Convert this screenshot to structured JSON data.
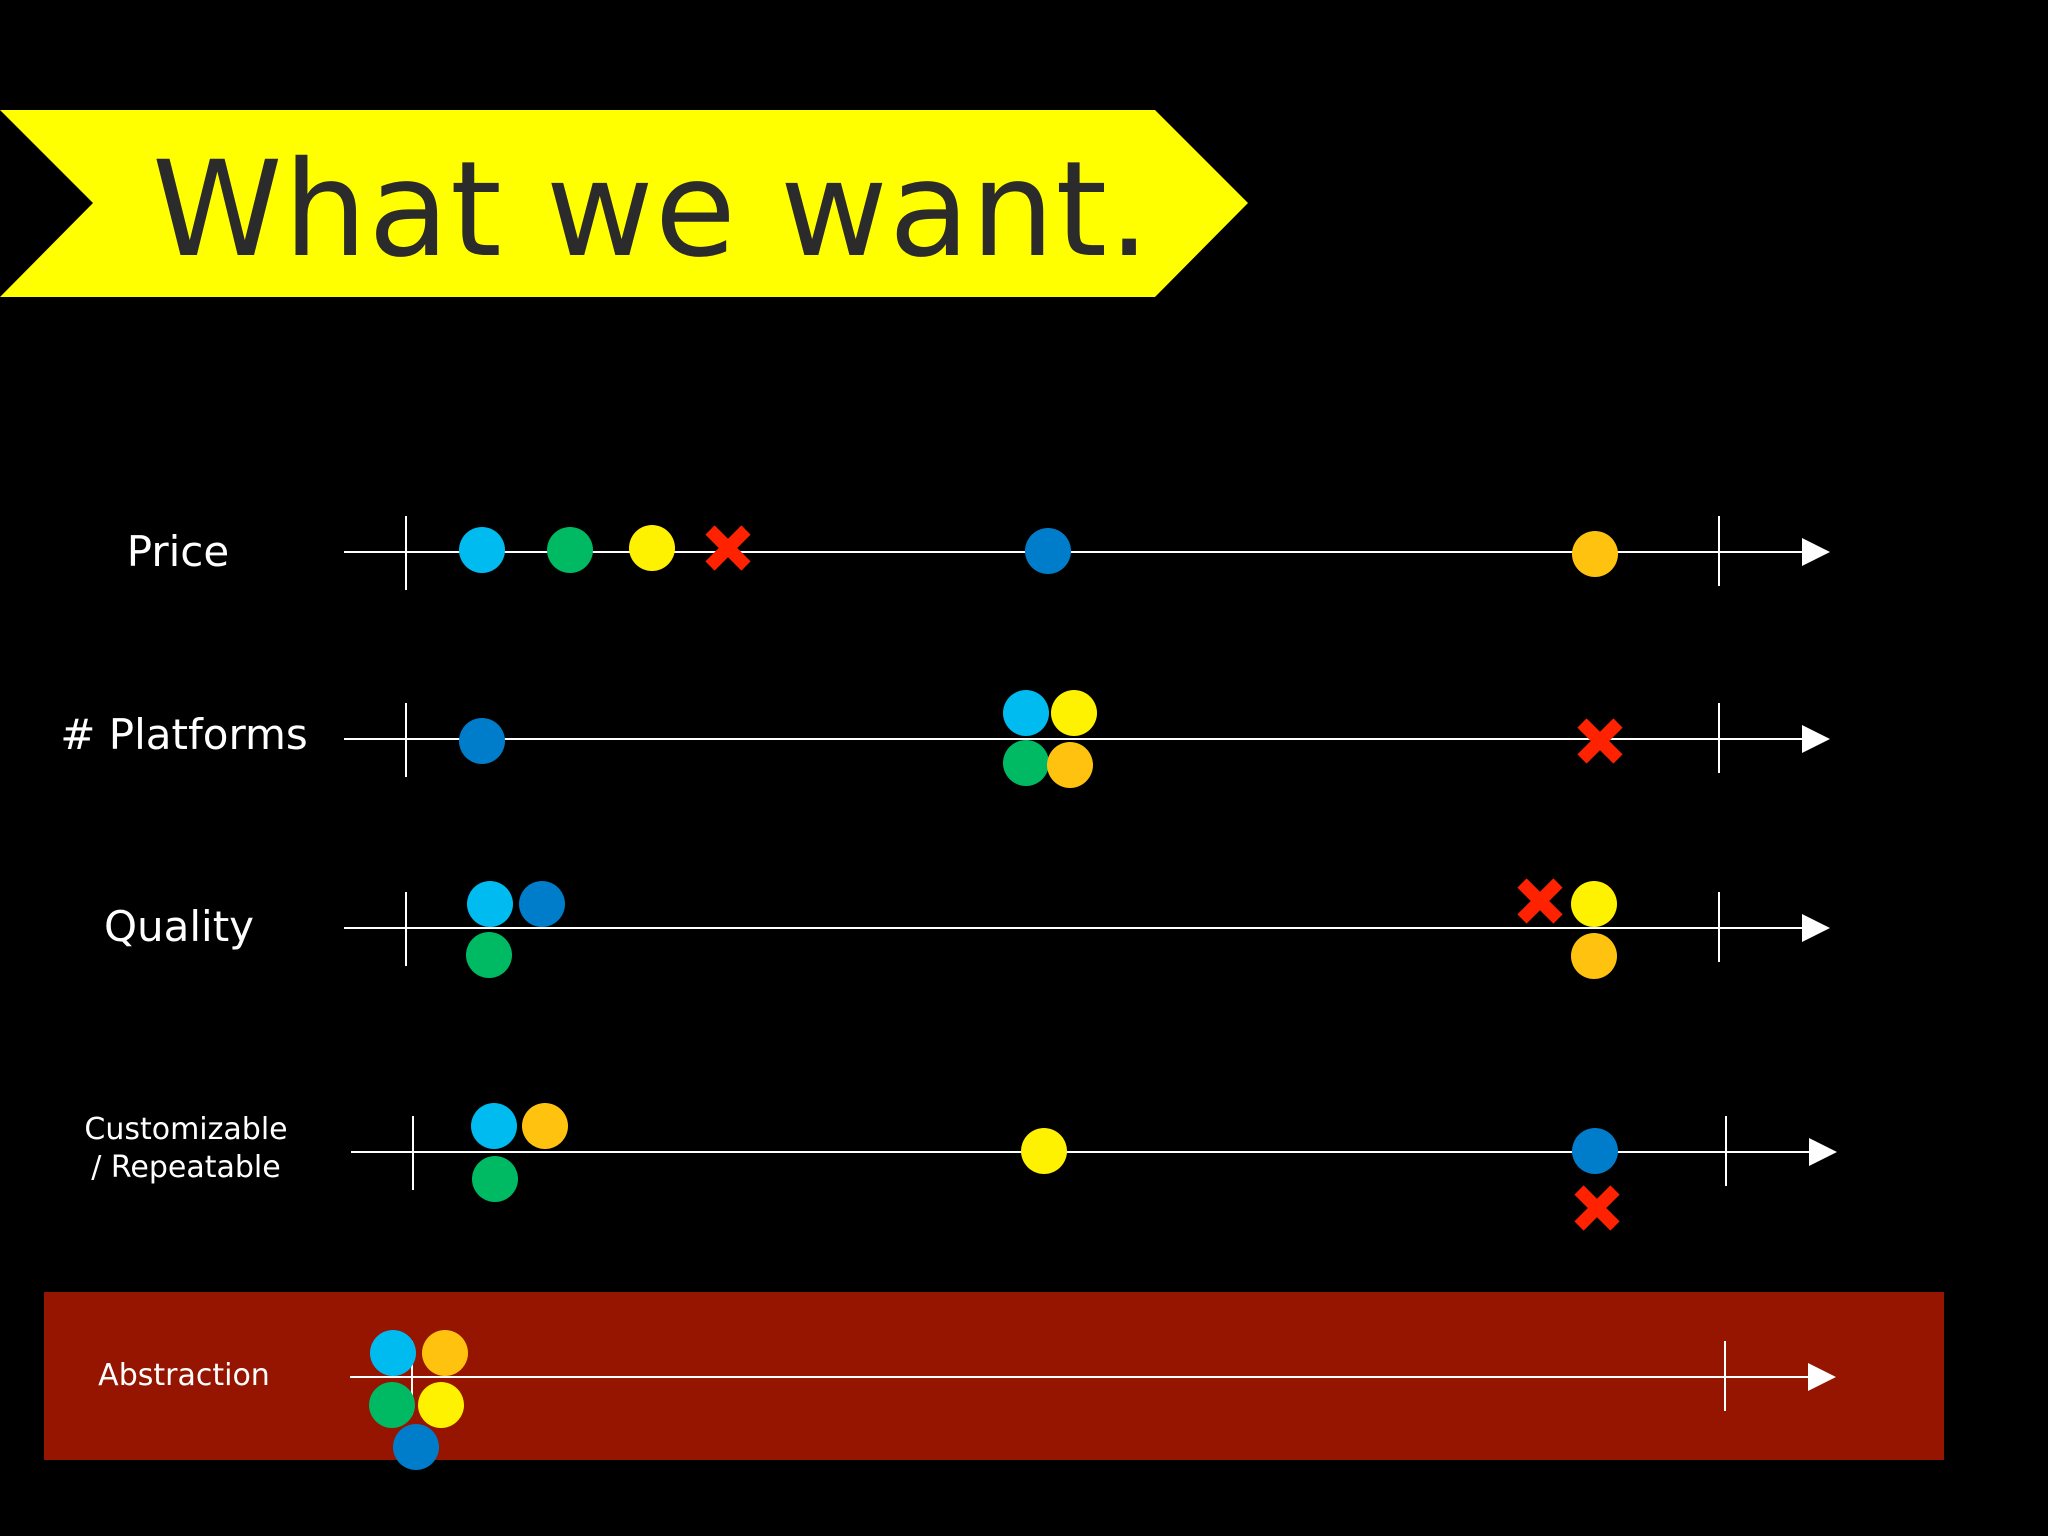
{
  "title": "What we want.",
  "colors": {
    "background": "#000000",
    "banner": "#FFFF00",
    "title_text": "#2B2B2B",
    "highlight_band": "#951500",
    "axis": "#FFFFFF",
    "light_blue": "#00BBF0",
    "dark_blue": "#007DCA",
    "green": "#00BA63",
    "yellow": "#FFF200",
    "orange": "#FFC20E",
    "red_x": "#FF2200"
  },
  "rows": [
    {
      "label_lines": [
        "Price"
      ],
      "highlighted": false,
      "markers": [
        {
          "shape": "dot",
          "color": "light_blue"
        },
        {
          "shape": "dot",
          "color": "green"
        },
        {
          "shape": "dot",
          "color": "yellow"
        },
        {
          "shape": "x",
          "color": "red_x"
        },
        {
          "shape": "dot",
          "color": "dark_blue"
        },
        {
          "shape": "dot",
          "color": "orange"
        }
      ]
    },
    {
      "label_lines": [
        "# Platforms"
      ],
      "highlighted": false,
      "markers": [
        {
          "shape": "dot",
          "color": "dark_blue"
        },
        {
          "shape": "dot",
          "color": "light_blue"
        },
        {
          "shape": "dot",
          "color": "yellow"
        },
        {
          "shape": "dot",
          "color": "green"
        },
        {
          "shape": "dot",
          "color": "orange"
        },
        {
          "shape": "x",
          "color": "red_x"
        }
      ]
    },
    {
      "label_lines": [
        "Quality"
      ],
      "highlighted": false,
      "markers": [
        {
          "shape": "dot",
          "color": "light_blue"
        },
        {
          "shape": "dot",
          "color": "dark_blue"
        },
        {
          "shape": "dot",
          "color": "green"
        },
        {
          "shape": "x",
          "color": "red_x"
        },
        {
          "shape": "dot",
          "color": "yellow"
        },
        {
          "shape": "dot",
          "color": "orange"
        }
      ]
    },
    {
      "label_lines": [
        "Customizable",
        "/ Repeatable"
      ],
      "highlighted": false,
      "markers": [
        {
          "shape": "dot",
          "color": "light_blue"
        },
        {
          "shape": "dot",
          "color": "orange"
        },
        {
          "shape": "dot",
          "color": "green"
        },
        {
          "shape": "dot",
          "color": "yellow"
        },
        {
          "shape": "dot",
          "color": "dark_blue"
        },
        {
          "shape": "x",
          "color": "red_x"
        }
      ]
    },
    {
      "label_lines": [
        "Abstraction"
      ],
      "highlighted": true,
      "markers": [
        {
          "shape": "dot",
          "color": "light_blue"
        },
        {
          "shape": "dot",
          "color": "orange"
        },
        {
          "shape": "dot",
          "color": "green"
        },
        {
          "shape": "dot",
          "color": "yellow"
        },
        {
          "shape": "dot",
          "color": "dark_blue"
        }
      ]
    }
  ]
}
